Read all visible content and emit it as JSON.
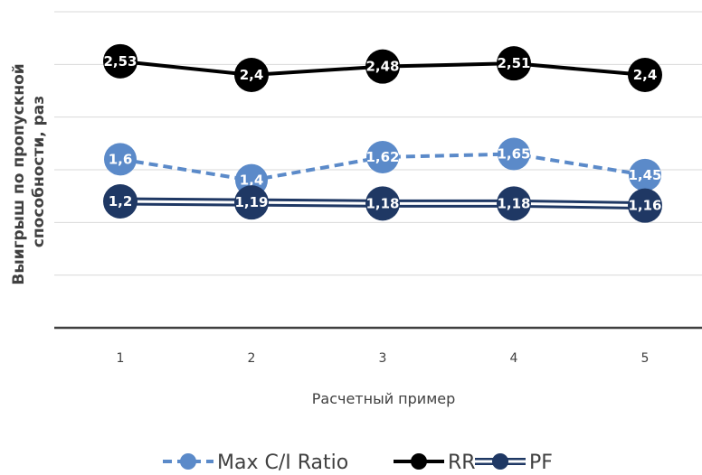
{
  "chart_data": {
    "type": "line",
    "title": "",
    "xlabel": "Расчетный пример",
    "ylabel_line1": "Выигрыш по пропускной",
    "ylabel_line2": "способности, раз",
    "categories": [
      "1",
      "2",
      "3",
      "4",
      "5"
    ],
    "ylim": [
      0,
      3
    ],
    "grid": true,
    "legend_position": "bottom",
    "series": [
      {
        "name": "Max C/I Ratio",
        "values": [
          1.6,
          1.4,
          1.62,
          1.65,
          1.45
        ],
        "labels": [
          "1,6",
          "1,4",
          "1,62",
          "1,65",
          "1,45"
        ],
        "color": "#5b8ac9",
        "style": "dashed"
      },
      {
        "name": "RR",
        "values": [
          2.53,
          2.4,
          2.48,
          2.51,
          2.4
        ],
        "labels": [
          "2,53",
          "2,4",
          "2,48",
          "2,51",
          "2,4"
        ],
        "color": "#000000",
        "style": "solid"
      },
      {
        "name": "PF",
        "values": [
          1.2,
          1.19,
          1.18,
          1.18,
          1.16
        ],
        "labels": [
          "1,2",
          "1,19",
          "1,18",
          "1,18",
          "1,16"
        ],
        "color": "#1f3864",
        "style": "double"
      }
    ]
  }
}
